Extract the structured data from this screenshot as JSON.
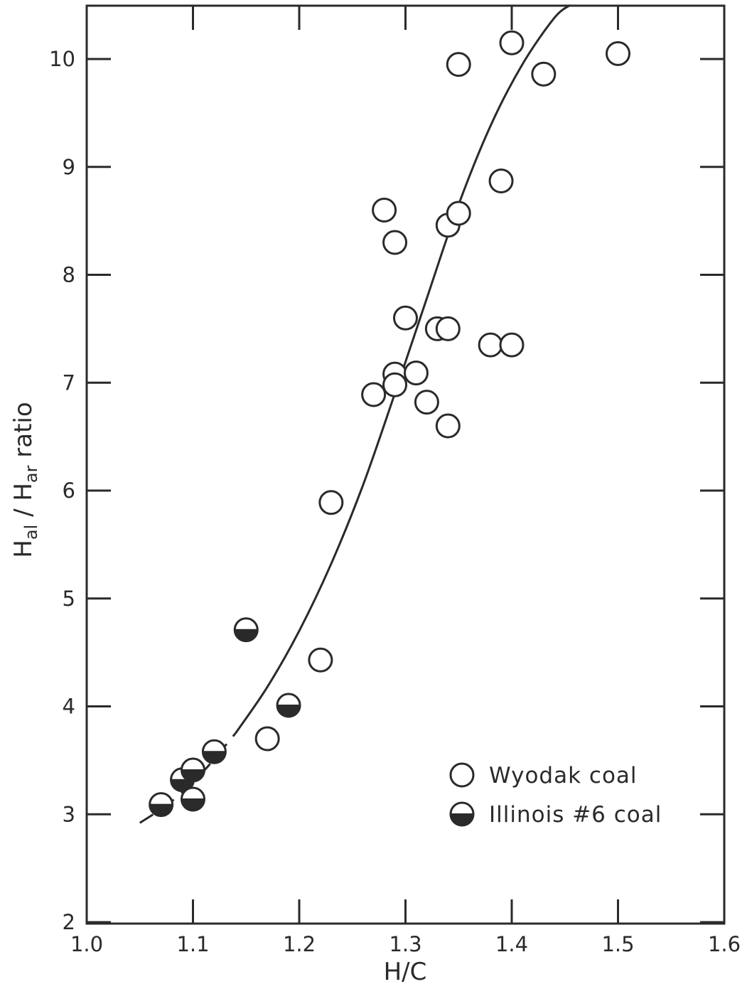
{
  "chart_data": {
    "type": "scatter",
    "xlabel": "H/C",
    "ylabel": "Hal/Har ratio",
    "ylabel_main": "H",
    "ylabel_sub1": "al",
    "ylabel_mid": " / H",
    "ylabel_sub2": "ar",
    "ylabel_tail": " ratio",
    "xlim": [
      1.0,
      1.6
    ],
    "ylim": [
      2,
      10.5
    ],
    "x_ticks": [
      1.0,
      1.1,
      1.2,
      1.3,
      1.4,
      1.5,
      1.6
    ],
    "x_tick_labels": [
      "1.0",
      "1.1",
      "1.2",
      "1.3",
      "1.4",
      "1.5",
      "1.6"
    ],
    "y_ticks": [
      2,
      3,
      4,
      5,
      6,
      7,
      8,
      9,
      10
    ],
    "y_tick_labels": [
      "2",
      "3",
      "4",
      "5",
      "6",
      "7",
      "8",
      "9",
      "10"
    ],
    "grid": false,
    "legend_position": "lower-right",
    "series": [
      {
        "name": "Wyodak coal",
        "marker": "open-circle",
        "points": [
          [
            1.17,
            3.7
          ],
          [
            1.22,
            4.43
          ],
          [
            1.23,
            5.89
          ],
          [
            1.27,
            6.89
          ],
          [
            1.28,
            8.6
          ],
          [
            1.29,
            8.3
          ],
          [
            1.29,
            7.08
          ],
          [
            1.29,
            6.98
          ],
          [
            1.3,
            7.6
          ],
          [
            1.31,
            7.09
          ],
          [
            1.32,
            6.82
          ],
          [
            1.33,
            7.5
          ],
          [
            1.34,
            7.5
          ],
          [
            1.34,
            8.46
          ],
          [
            1.35,
            8.57
          ],
          [
            1.34,
            6.6
          ],
          [
            1.35,
            9.95
          ],
          [
            1.38,
            7.35
          ],
          [
            1.39,
            8.87
          ],
          [
            1.4,
            7.35
          ],
          [
            1.4,
            10.15
          ],
          [
            1.43,
            9.86
          ],
          [
            1.5,
            10.05
          ]
        ]
      },
      {
        "name": "Illinois #6 coal",
        "marker": "half-filled-circle",
        "points": [
          [
            1.07,
            3.09
          ],
          [
            1.09,
            3.32
          ],
          [
            1.1,
            3.41
          ],
          [
            1.1,
            3.14
          ],
          [
            1.12,
            3.58
          ],
          [
            1.15,
            4.71
          ],
          [
            1.19,
            4.01
          ]
        ]
      }
    ],
    "fit_curve": {
      "points": [
        [
          1.05,
          2.92
        ],
        [
          1.08,
          3.12
        ],
        [
          1.11,
          3.4
        ],
        [
          1.14,
          3.75
        ],
        [
          1.17,
          4.18
        ],
        [
          1.2,
          4.7
        ],
        [
          1.23,
          5.32
        ],
        [
          1.26,
          6.05
        ],
        [
          1.29,
          6.9
        ],
        [
          1.32,
          7.78
        ],
        [
          1.35,
          8.65
        ],
        [
          1.38,
          9.38
        ],
        [
          1.41,
          9.95
        ],
        [
          1.44,
          10.38
        ],
        [
          1.455,
          10.6
        ]
      ],
      "dashed_until_x": 1.13
    },
    "colors": {
      "ink": "#2a2a2a",
      "background": "#ffffff"
    }
  }
}
